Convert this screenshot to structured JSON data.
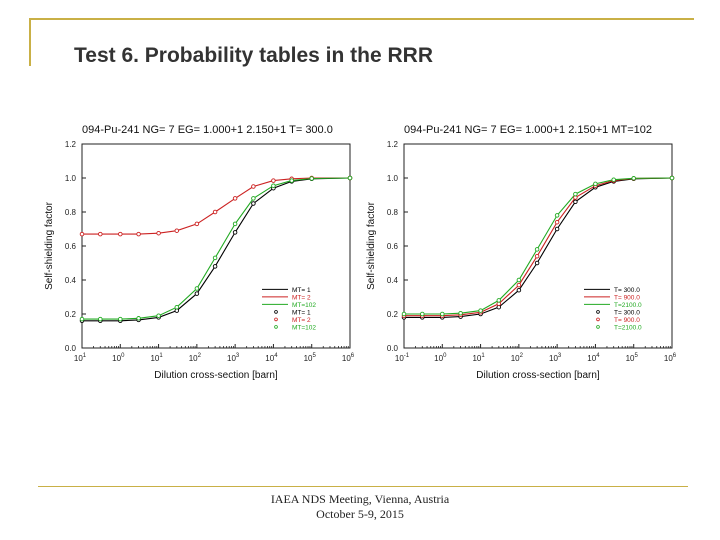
{
  "slide": {
    "title": "Test 6. Probability tables in the  RRR",
    "footer_line1": "IAEA NDS Meeting, Vienna, Austria",
    "footer_line2": "October 5-9, 2015"
  },
  "chart_data": [
    {
      "type": "line",
      "title": "094-Pu-241  NG=  7 EG= 1.000+1 2.150+1 T= 300.0",
      "xlabel": "Dilution cross-section [barn]",
      "ylabel": "Self-shielding factor",
      "xscale": "log",
      "xlim": [
        0.1,
        1000000
      ],
      "ylim": [
        0,
        1.2
      ],
      "xticks": [
        "10-1",
        "10^0",
        "10^1",
        "10^2",
        "10^3",
        "10^4",
        "10^5",
        "10^6"
      ],
      "xtick_labels": [
        "10 1",
        "10 0",
        "10 1",
        "10 2",
        "10 3",
        "10 4",
        "10 5",
        "10 6"
      ],
      "yticks": [
        "0.0",
        "0.2",
        "0.4",
        "0.6",
        "0.8",
        "1.0",
        "1.2"
      ],
      "legend_position": "bottom-right",
      "x": [
        0.1,
        0.3,
        1,
        3,
        10,
        30,
        100,
        300,
        1000,
        3000,
        10000,
        30000,
        100000,
        1000000
      ],
      "series": [
        {
          "name": "MT= 1",
          "color": "#000000",
          "style": "line",
          "values": [
            0.16,
            0.16,
            0.16,
            0.165,
            0.18,
            0.22,
            0.32,
            0.48,
            0.68,
            0.85,
            0.94,
            0.98,
            0.995,
            1.0
          ]
        },
        {
          "name": "MT= 2",
          "color": "#cc2222",
          "style": "line",
          "values": [
            0.67,
            0.67,
            0.67,
            0.67,
            0.675,
            0.69,
            0.73,
            0.8,
            0.88,
            0.95,
            0.985,
            0.995,
            1.0,
            1.0
          ]
        },
        {
          "name": "MT=102",
          "color": "#22aa22",
          "style": "line",
          "values": [
            0.17,
            0.17,
            0.17,
            0.175,
            0.19,
            0.24,
            0.35,
            0.53,
            0.73,
            0.88,
            0.955,
            0.985,
            0.997,
            1.0
          ]
        },
        {
          "name": "MT= 1",
          "color": "#000000",
          "style": "points",
          "values": [
            0.16,
            0.16,
            0.16,
            0.165,
            0.18,
            0.22,
            0.32,
            0.48,
            0.68,
            0.85,
            0.94,
            0.98,
            0.995,
            1.0
          ]
        },
        {
          "name": "MT= 2",
          "color": "#cc2222",
          "style": "points",
          "values": [
            0.67,
            0.67,
            0.67,
            0.67,
            0.675,
            0.69,
            0.73,
            0.8,
            0.88,
            0.95,
            0.985,
            0.995,
            1.0,
            1.0
          ]
        },
        {
          "name": "MT=102",
          "color": "#22aa22",
          "style": "points",
          "values": [
            0.17,
            0.17,
            0.17,
            0.175,
            0.19,
            0.24,
            0.35,
            0.53,
            0.73,
            0.88,
            0.955,
            0.985,
            0.997,
            1.0
          ]
        }
      ]
    },
    {
      "type": "line",
      "title": "094-Pu-241  NG=  7 EG= 1.000+1 2.150+1 MT=102",
      "xlabel": "Dilution cross-section [barn]",
      "ylabel": "Self-shielding factor",
      "xscale": "log",
      "xlim": [
        0.1,
        1000000
      ],
      "ylim": [
        0,
        1.2
      ],
      "xticks": [
        "10-1",
        "10^0",
        "10^1",
        "10^2",
        "10^3",
        "10^4",
        "10^5",
        "10^6"
      ],
      "xtick_labels": [
        "10 -1",
        "10 0",
        "10 1",
        "10 2",
        "10 3",
        "10 4",
        "10 5",
        "10 6"
      ],
      "yticks": [
        "0.0",
        "0.2",
        "0.4",
        "0.6",
        "0.8",
        "1.0",
        "1.2"
      ],
      "legend_position": "bottom-right",
      "x": [
        0.1,
        0.3,
        1,
        3,
        10,
        30,
        100,
        300,
        1000,
        3000,
        10000,
        30000,
        100000,
        1000000
      ],
      "series": [
        {
          "name": "T=  300.0",
          "color": "#000000",
          "style": "line",
          "values": [
            0.18,
            0.18,
            0.18,
            0.185,
            0.2,
            0.24,
            0.34,
            0.5,
            0.7,
            0.86,
            0.945,
            0.98,
            0.995,
            1.0
          ]
        },
        {
          "name": "T=  900.0",
          "color": "#cc2222",
          "style": "line",
          "values": [
            0.19,
            0.19,
            0.19,
            0.195,
            0.21,
            0.26,
            0.37,
            0.54,
            0.74,
            0.885,
            0.955,
            0.985,
            0.997,
            1.0
          ]
        },
        {
          "name": "T=2100.0",
          "color": "#22aa22",
          "style": "line",
          "values": [
            0.2,
            0.2,
            0.2,
            0.205,
            0.22,
            0.28,
            0.4,
            0.58,
            0.78,
            0.905,
            0.965,
            0.99,
            0.998,
            1.0
          ]
        },
        {
          "name": "T=  300.0",
          "color": "#000000",
          "style": "points",
          "values": [
            0.18,
            0.18,
            0.18,
            0.185,
            0.2,
            0.24,
            0.34,
            0.5,
            0.7,
            0.86,
            0.945,
            0.98,
            0.995,
            1.0
          ]
        },
        {
          "name": "T=  900.0",
          "color": "#cc2222",
          "style": "points",
          "values": [
            0.19,
            0.19,
            0.19,
            0.195,
            0.21,
            0.26,
            0.37,
            0.54,
            0.74,
            0.885,
            0.955,
            0.985,
            0.997,
            1.0
          ]
        },
        {
          "name": "T=2100.0",
          "color": "#22aa22",
          "style": "points",
          "values": [
            0.2,
            0.2,
            0.2,
            0.205,
            0.22,
            0.28,
            0.4,
            0.58,
            0.78,
            0.905,
            0.965,
            0.99,
            0.998,
            1.0
          ]
        }
      ]
    }
  ]
}
